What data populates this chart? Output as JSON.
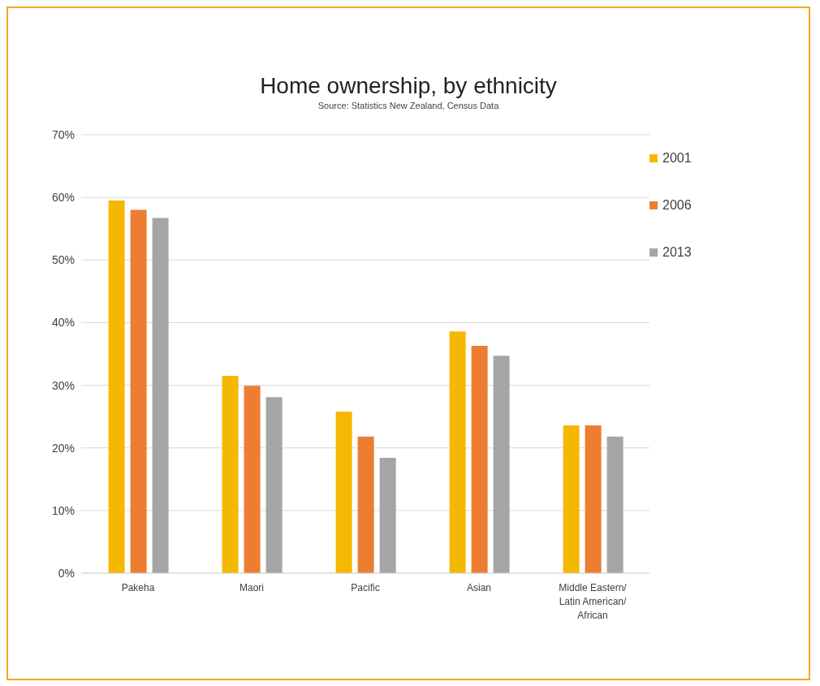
{
  "chart_data": {
    "type": "bar",
    "title": "Home ownership, by ethnicity",
    "subtitle": "Source: Statistics New Zealand, Census Data",
    "categories": [
      "Pakeha",
      "Maori",
      "Pacific",
      "Asian",
      "Middle Eastern/Latin American/African"
    ],
    "series": [
      {
        "name": "2001",
        "color": "#f5b800",
        "values": [
          59.5,
          31.5,
          25.8,
          38.6,
          23.6
        ]
      },
      {
        "name": "2006",
        "color": "#ed7d31",
        "values": [
          58,
          29.9,
          21.8,
          36.3,
          23.6
        ]
      },
      {
        "name": "2013",
        "color": "#a5a5a5",
        "values": [
          56.7,
          28.1,
          18.4,
          34.7,
          21.8
        ]
      }
    ],
    "ylim": [
      0,
      70
    ],
    "yticks": [
      {
        "value": 0,
        "label": "0%"
      },
      {
        "value": 10,
        "label": "10%"
      },
      {
        "value": 20,
        "label": "20%"
      },
      {
        "value": 30,
        "label": "30%"
      },
      {
        "value": 40,
        "label": "40%"
      },
      {
        "value": 50,
        "label": "50%"
      },
      {
        "value": 60,
        "label": "60%"
      },
      {
        "value": 70,
        "label": "70%"
      }
    ],
    "grid": "y",
    "legend": "top right"
  }
}
